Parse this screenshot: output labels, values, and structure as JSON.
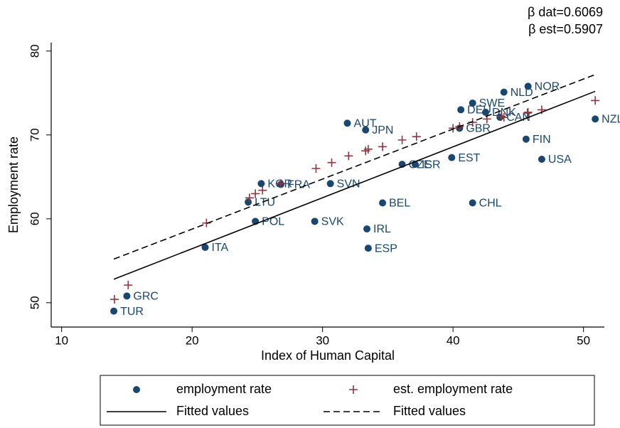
{
  "chart_data": {
    "type": "scatter",
    "annotations": [
      "β dat=0.6069",
      "β est=0.5907"
    ],
    "x_label": "Index of Human Capital",
    "y_label": "Employment rate",
    "xlim": [
      9.2,
      51.6
    ],
    "ylim": [
      47.1,
      81
    ],
    "xticks": [
      10,
      20,
      30,
      40,
      50
    ],
    "yticks": [
      50,
      60,
      70,
      80
    ],
    "grid": false,
    "legend": "bottom",
    "series": [
      {
        "name": "employment rate",
        "color": "#1a476f",
        "marker": "circle",
        "labels": [
          "TUR",
          "GRC",
          "ITA",
          "LTU",
          "KOR",
          "FRA",
          "POL",
          "SVK",
          "SVN",
          "AUT",
          "JPN",
          "IRL",
          "ESP",
          "BEL",
          "CZE",
          "ISR",
          "EST",
          "CHL",
          "GBR",
          "DEU",
          "SWE",
          "DNK",
          "CAN",
          "NLD",
          "NOR",
          "FIN",
          "USA",
          "NZL"
        ],
        "x": [
          14.0,
          15.0,
          21.0,
          24.3,
          25.3,
          26.8,
          24.85,
          29.4,
          30.6,
          31.9,
          33.3,
          33.4,
          33.5,
          34.6,
          36.1,
          37.1,
          39.9,
          41.5,
          40.5,
          40.6,
          41.5,
          42.5,
          43.6,
          43.9,
          45.75,
          45.6,
          46.8,
          50.9
        ],
        "values": [
          49.0,
          50.8,
          56.6,
          62.0,
          64.2,
          64.1,
          59.7,
          59.7,
          64.2,
          71.4,
          70.6,
          58.8,
          56.5,
          61.9,
          66.5,
          66.5,
          67.3,
          61.9,
          70.8,
          73.0,
          73.8,
          72.7,
          72.1,
          75.1,
          75.8,
          69.5,
          67.1,
          71.9
        ]
      },
      {
        "name": "est. employment rate",
        "color": "#90353b",
        "marker": "plus",
        "x": [
          14.05,
          15.1,
          21.1,
          24.4,
          24.85,
          25.4,
          26.8,
          29.5,
          30.7,
          32.0,
          33.3,
          33.5,
          34.6,
          36.1,
          37.2,
          40.0,
          40.5,
          41.5,
          42.6,
          43.7,
          43.9,
          45.75,
          45.7,
          46.8,
          50.9
        ],
        "values": [
          50.4,
          52.1,
          59.5,
          62.5,
          63.0,
          63.4,
          64.2,
          66.0,
          66.7,
          67.5,
          68.1,
          68.3,
          68.6,
          69.4,
          69.8,
          70.8,
          71.0,
          71.5,
          71.9,
          72.2,
          72.1,
          72.7,
          72.6,
          73.0,
          74.1
        ]
      },
      {
        "name": "Fitted values",
        "color": "#000000",
        "marker": "line",
        "dash": false,
        "x": [
          14.0,
          50.9
        ],
        "values": [
          52.8,
          75.2
        ]
      },
      {
        "name": "Fitted values",
        "color": "#000000",
        "marker": "line",
        "dash": true,
        "x": [
          14.0,
          50.9
        ],
        "values": [
          55.2,
          77.2
        ]
      }
    ]
  }
}
